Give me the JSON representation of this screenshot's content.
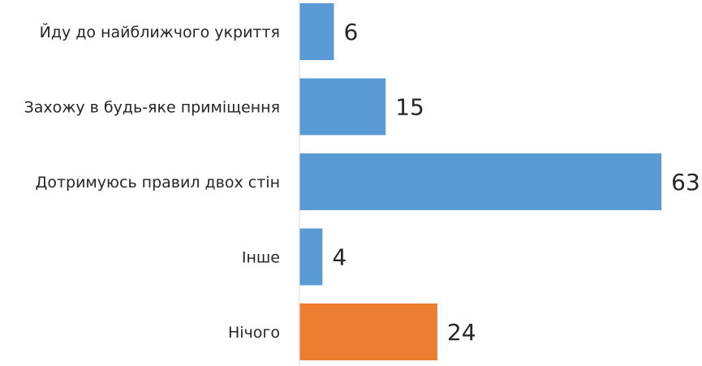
{
  "chart_data": {
    "type": "bar",
    "orientation": "horizontal",
    "categories": [
      "Йду до найближчого укриття",
      "Захожу в будь-яке приміщення",
      "Дотримуюсь правил двох стін",
      "Інше",
      "Нічого"
    ],
    "values": [
      6,
      15,
      63,
      4,
      24
    ],
    "colors": [
      "#5b9bd5",
      "#5b9bd5",
      "#5b9bd5",
      "#5b9bd5",
      "#ed7d31"
    ],
    "xlim": [
      0,
      63
    ],
    "grid": false,
    "legend": "none",
    "data_labels": true
  }
}
